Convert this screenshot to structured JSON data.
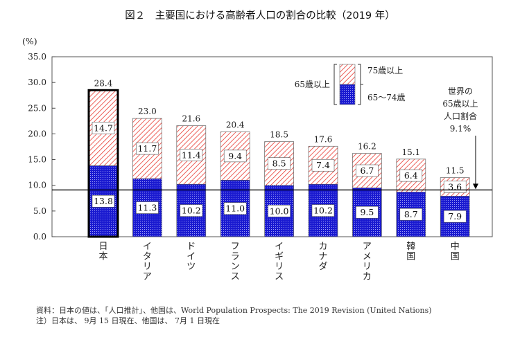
{
  "chart_data": {
    "type": "bar",
    "title": "図２　主要国における高齢者人口の割合の比較（2019 年）",
    "ylabel": "(%)",
    "ylim": [
      0,
      35
    ],
    "yticks": [
      "0.0",
      "5.0",
      "10.0",
      "15.0",
      "20.0",
      "25.0",
      "30.0",
      "35.0"
    ],
    "categories": [
      "日本",
      "イタリア",
      "ドイツ",
      "フランス",
      "イギリス",
      "カナダ",
      "アメリカ",
      "韓国",
      "中国"
    ],
    "totals": [
      "28.4",
      "23.0",
      "21.6",
      "20.4",
      "18.5",
      "17.6",
      "16.2",
      "15.1",
      "11.5"
    ],
    "series": [
      {
        "name": "65～74歳",
        "values": [
          13.8,
          11.3,
          10.2,
          11.0,
          10.0,
          10.2,
          9.5,
          8.7,
          7.9
        ],
        "color": "#2424d8"
      },
      {
        "name": "75歳以上",
        "values": [
          14.7,
          11.7,
          11.4,
          9.4,
          8.5,
          7.4,
          6.7,
          6.4,
          3.6
        ],
        "color": "#e8382f"
      }
    ],
    "segment_labels": [
      [
        "13.8",
        "11.3",
        "10.2",
        "11.0",
        "10.0",
        "10.2",
        "9.5",
        "8.7",
        "7.9"
      ],
      [
        "14.7",
        "11.7",
        "11.4",
        "9.4",
        "8.5",
        "7.4",
        "6.7",
        "6.4",
        "3.6"
      ]
    ],
    "legend": {
      "group_label": "65歳以上",
      "top": "75歳以上",
      "bottom": "65～74歳",
      "placement": "top-right"
    },
    "reference_line": {
      "value": 9.1,
      "label_lines": [
        "世界の",
        "65歳以上",
        "人口割合",
        "9.1%"
      ]
    },
    "highlighted_category": "日本",
    "footnotes": [
      "資料：日本の値は、「人口推計」、他国は、World Population Prospects: The 2019 Revision (United Nations)",
      "注）日本は、 9月 15 日現在、他国は、 7月 1 日現在"
    ]
  }
}
